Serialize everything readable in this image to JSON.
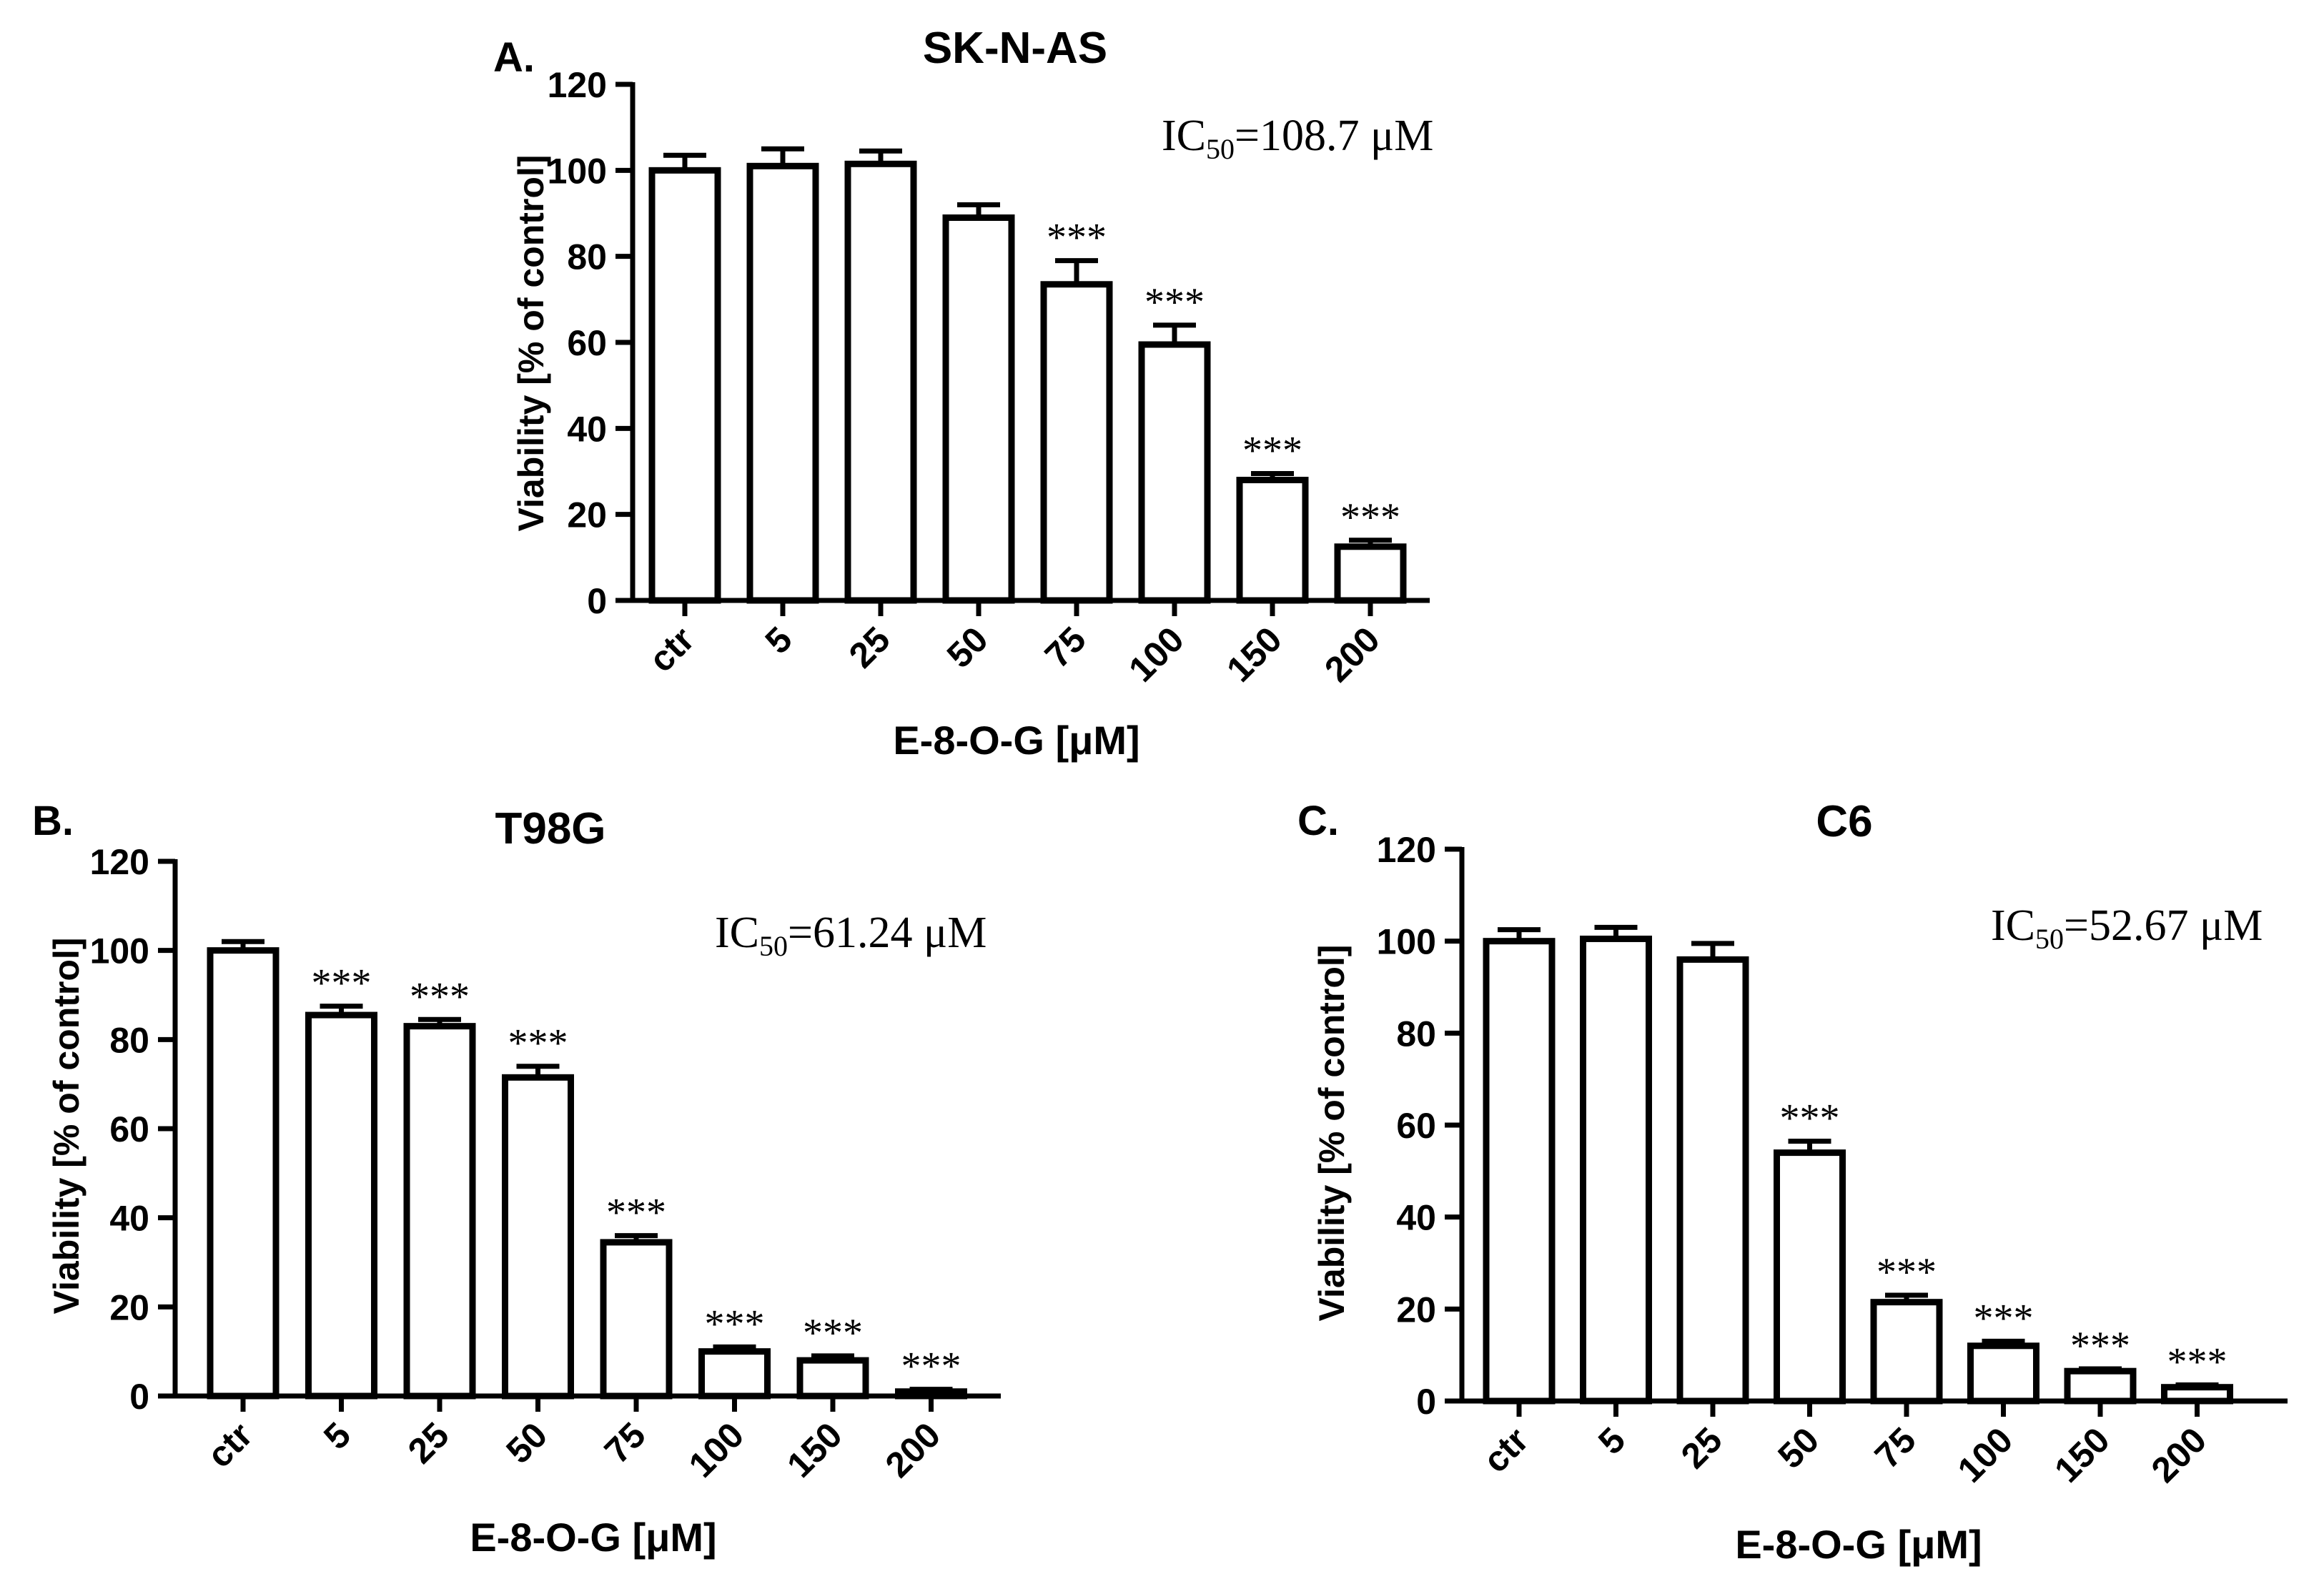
{
  "chart_data": [
    {
      "type": "bar",
      "panel_label": "A.",
      "title": "SK-N-AS",
      "annotation": {
        "prefix": "IC",
        "subscript": "50",
        "value": "=108.7 μM"
      },
      "xlabel": "E-8-O-G [μM]",
      "ylabel": "Viability [% of control]",
      "ylim": [
        0,
        120
      ],
      "yticks": [
        0,
        20,
        40,
        60,
        80,
        100,
        120
      ],
      "grid": false,
      "categories": [
        "ctr",
        "5",
        "25",
        "50",
        "75",
        "100",
        "150",
        "200"
      ],
      "values": [
        100,
        101,
        101.5,
        89,
        73.5,
        59.5,
        28,
        12.5
      ],
      "errors": [
        3.5,
        4,
        3,
        3,
        5.5,
        4.5,
        1.5,
        1.5
      ],
      "significance": [
        "",
        "",
        "",
        "",
        "***",
        "***",
        "***",
        "***"
      ]
    },
    {
      "type": "bar",
      "panel_label": "B.",
      "title": "T98G",
      "annotation": {
        "prefix": "IC",
        "subscript": "50",
        "value": "=61.24 μM"
      },
      "xlabel": "E-8-O-G [μM]",
      "ylabel": "Viability [% of control]",
      "ylim": [
        0,
        120
      ],
      "yticks": [
        0,
        20,
        40,
        60,
        80,
        100,
        120
      ],
      "grid": false,
      "categories": [
        "ctr",
        "5",
        "25",
        "50",
        "75",
        "100",
        "150",
        "200"
      ],
      "values": [
        100,
        85.5,
        83,
        71.5,
        34.5,
        10,
        8,
        1
      ],
      "errors": [
        2,
        2,
        1.5,
        2.5,
        1.5,
        1,
        1,
        0.5
      ],
      "significance": [
        "",
        "***",
        "***",
        "***",
        "***",
        "***",
        "***",
        "***"
      ]
    },
    {
      "type": "bar",
      "panel_label": "C.",
      "title": "C6",
      "annotation": {
        "prefix": "IC",
        "subscript": "50",
        "value": "=52.67 μM"
      },
      "xlabel": "E-8-O-G [μM]",
      "ylabel": "Viability [% of control]",
      "ylim": [
        0,
        120
      ],
      "yticks": [
        0,
        20,
        40,
        60,
        80,
        100,
        120
      ],
      "grid": false,
      "categories": [
        "ctr",
        "5",
        "25",
        "50",
        "75",
        "100",
        "150",
        "200"
      ],
      "values": [
        100,
        100.5,
        96,
        54,
        21.5,
        12,
        6.5,
        3
      ],
      "errors": [
        2.5,
        2.5,
        3.5,
        2.5,
        1.5,
        1,
        0.5,
        0.5
      ],
      "significance": [
        "",
        "",
        "",
        "***",
        "***",
        "***",
        "***",
        "***"
      ]
    }
  ]
}
